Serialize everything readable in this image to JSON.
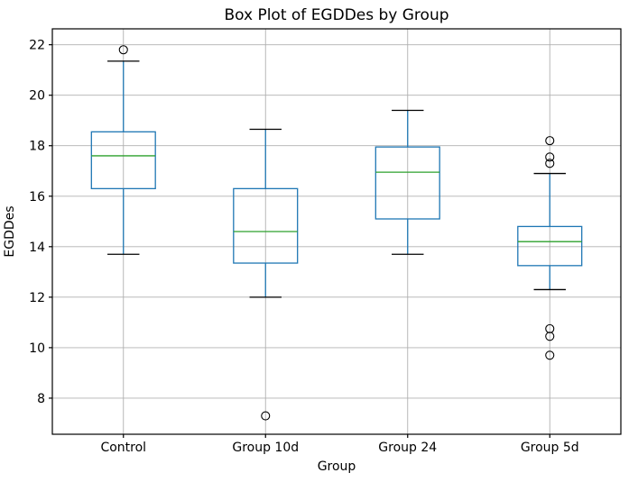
{
  "figure": {
    "background": "#ffffff"
  },
  "chart_data": {
    "type": "boxplot",
    "title": "Box Plot of EGDDes by Group",
    "xlabel": "Group",
    "ylabel": "EGDDes",
    "categories": [
      "Control",
      "Group 10d",
      "Group 24",
      "Group 5d"
    ],
    "yticks": [
      8,
      10,
      12,
      14,
      16,
      18,
      20,
      22
    ],
    "ylim": [
      6.57,
      22.63
    ],
    "grid": true,
    "legend": "none",
    "series": [
      {
        "name": "Control",
        "whisker_low": 13.7,
        "q1": 16.3,
        "median": 17.6,
        "q3": 18.55,
        "whisker_high": 21.35,
        "outliers": [
          21.8
        ]
      },
      {
        "name": "Group 10d",
        "whisker_low": 12.0,
        "q1": 13.35,
        "median": 14.6,
        "q3": 16.3,
        "whisker_high": 18.65,
        "outliers": [
          7.3
        ]
      },
      {
        "name": "Group 24",
        "whisker_low": 13.7,
        "q1": 15.1,
        "median": 16.95,
        "q3": 17.95,
        "whisker_high": 19.4,
        "outliers": []
      },
      {
        "name": "Group 5d",
        "whisker_low": 12.3,
        "q1": 13.25,
        "median": 14.2,
        "q3": 14.8,
        "whisker_high": 16.9,
        "outliers": [
          18.2,
          17.55,
          17.3,
          10.75,
          10.45,
          9.7
        ]
      }
    ],
    "colors": {
      "box": "#1f77b4",
      "whisker": "#1f77b4",
      "median": "#2ca02c",
      "cap": "#000000",
      "flier": "#000000",
      "grid": "#b0b0b0",
      "axis": "#000000",
      "text": "#000000"
    }
  }
}
